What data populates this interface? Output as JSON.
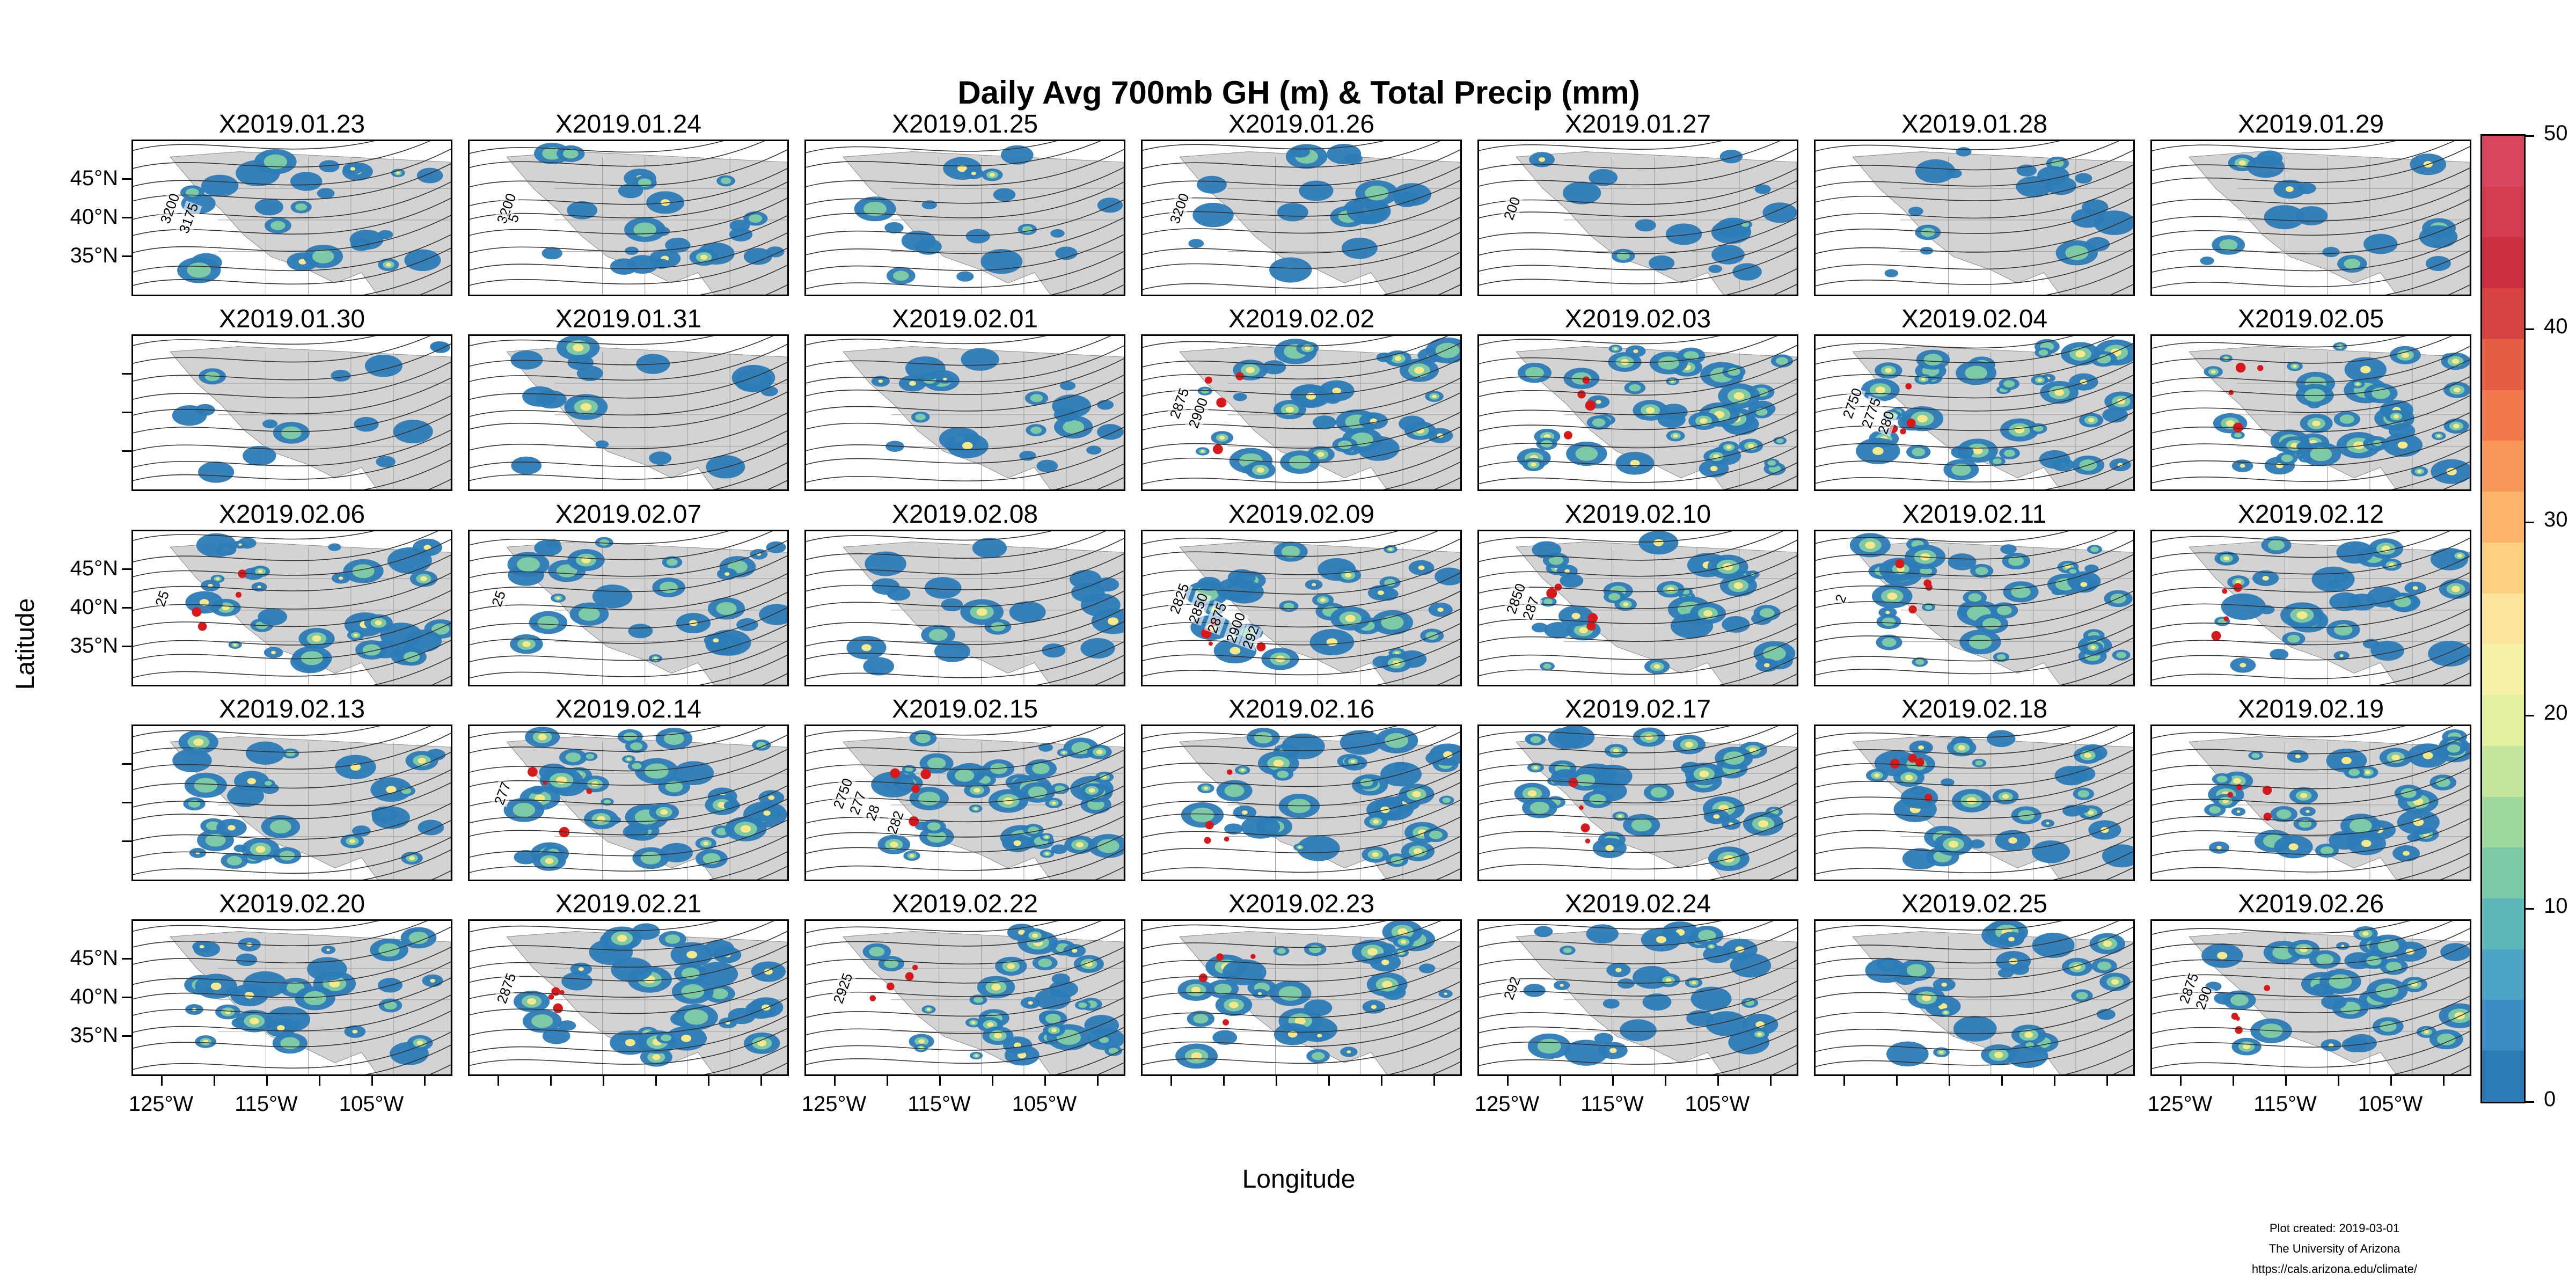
{
  "title": "Daily Avg 700mb GH (m) & Total Precip (mm)",
  "x_axis_title": "Longitude",
  "y_axis_title": "Latitude",
  "lat_ticks": [
    "45°N",
    "40°N",
    "35°N"
  ],
  "lon_ticks": [
    "125°W",
    "115°W",
    "105°W"
  ],
  "panels": [
    {
      "label": "X2019.01.23",
      "intensity": 0.35,
      "contours": [
        "3200",
        "3175"
      ]
    },
    {
      "label": "X2019.01.24",
      "intensity": 0.35,
      "contours": [
        "3200",
        "5"
      ]
    },
    {
      "label": "X2019.01.25",
      "intensity": 0.2,
      "contours": []
    },
    {
      "label": "X2019.01.26",
      "intensity": 0.2,
      "contours": [
        "3200"
      ]
    },
    {
      "label": "X2019.01.27",
      "intensity": 0.15,
      "contours": [
        "200"
      ]
    },
    {
      "label": "X2019.01.28",
      "intensity": 0.2,
      "contours": []
    },
    {
      "label": "X2019.01.29",
      "intensity": 0.15,
      "contours": []
    },
    {
      "label": "X2019.01.30",
      "intensity": 0.1,
      "contours": []
    },
    {
      "label": "X2019.01.31",
      "intensity": 0.15,
      "contours": []
    },
    {
      "label": "X2019.02.01",
      "intensity": 0.3,
      "contours": []
    },
    {
      "label": "X2019.02.02",
      "intensity": 0.6,
      "contours": [
        "2875",
        "2900"
      ]
    },
    {
      "label": "X2019.02.03",
      "intensity": 0.8,
      "contours": []
    },
    {
      "label": "X2019.02.04",
      "intensity": 0.8,
      "contours": [
        "2750",
        "2775",
        "280"
      ]
    },
    {
      "label": "X2019.02.05",
      "intensity": 0.8,
      "contours": []
    },
    {
      "label": "X2019.02.06",
      "intensity": 0.6,
      "contours": [
        "25"
      ]
    },
    {
      "label": "X2019.02.07",
      "intensity": 0.45,
      "contours": [
        "25"
      ]
    },
    {
      "label": "X2019.02.08",
      "intensity": 0.25,
      "contours": []
    },
    {
      "label": "X2019.02.09",
      "intensity": 0.6,
      "contours": [
        "2825",
        "2850",
        "2875",
        "2900",
        "292"
      ]
    },
    {
      "label": "X2019.02.10",
      "intensity": 0.6,
      "contours": [
        "2850",
        "287"
      ]
    },
    {
      "label": "X2019.02.11",
      "intensity": 0.75,
      "contours": [
        "2"
      ]
    },
    {
      "label": "X2019.02.12",
      "intensity": 0.6,
      "contours": []
    },
    {
      "label": "X2019.02.13",
      "intensity": 0.55,
      "contours": []
    },
    {
      "label": "X2019.02.14",
      "intensity": 0.85,
      "contours": [
        "277"
      ]
    },
    {
      "label": "X2019.02.15",
      "intensity": 0.9,
      "contours": [
        "2750",
        "277",
        "28",
        "282"
      ]
    },
    {
      "label": "X2019.02.16",
      "intensity": 0.75,
      "contours": []
    },
    {
      "label": "X2019.02.17",
      "intensity": 0.7,
      "contours": []
    },
    {
      "label": "X2019.02.18",
      "intensity": 0.65,
      "contours": []
    },
    {
      "label": "X2019.02.19",
      "intensity": 0.65,
      "contours": []
    },
    {
      "label": "X2019.02.20",
      "intensity": 0.55,
      "contours": []
    },
    {
      "label": "X2019.02.21",
      "intensity": 0.6,
      "contours": [
        "2875"
      ]
    },
    {
      "label": "X2019.02.22",
      "intensity": 0.7,
      "contours": [
        "2925"
      ]
    },
    {
      "label": "X2019.02.23",
      "intensity": 0.6,
      "contours": []
    },
    {
      "label": "X2019.02.24",
      "intensity": 0.55,
      "contours": [
        "292"
      ]
    },
    {
      "label": "X2019.02.25",
      "intensity": 0.5,
      "contours": []
    },
    {
      "label": "X2019.02.26",
      "intensity": 0.6,
      "contours": [
        "2875",
        "290"
      ]
    }
  ],
  "colorbar": {
    "ticks": [
      "50",
      "40",
      "30",
      "20",
      "10",
      "0"
    ],
    "colors": [
      "#2c7bb6",
      "#3b8cc0",
      "#4aa3c4",
      "#5cb8b8",
      "#7dc9a6",
      "#9fd89c",
      "#c2e69a",
      "#e2f0a0",
      "#f5f2a8",
      "#fde49a",
      "#fdcf7f",
      "#fcb468",
      "#f89658",
      "#f1784c",
      "#e65d45",
      "#d94343",
      "#cc2f3e",
      "#d43d4f",
      "#d8475d"
    ]
  },
  "colors": {
    "land": "#d3d3d3",
    "precip_low": "#2c7bb6",
    "precip_mid": "#7dc9a6",
    "precip_high": "#f6e98a",
    "precip_peak": "#d7191c"
  },
  "credits": [
    "Plot created: 2019-03-01",
    "The University of Arizona",
    "https://cals.arizona.edu/climate/"
  ]
}
